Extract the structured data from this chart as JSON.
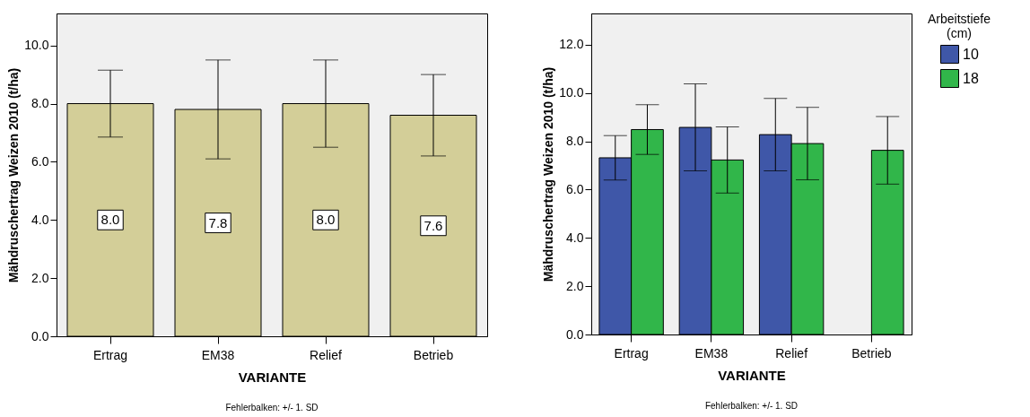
{
  "chart_data": [
    {
      "type": "bar",
      "categories": [
        "Ertrag",
        "EM38",
        "Relief",
        "Betrieb"
      ],
      "xlabel": "VARIANTE",
      "ylabel": "Mähdruschertrag Weizen 2010 (t/ha)",
      "values": [
        8.0,
        7.8,
        8.0,
        7.6
      ],
      "color": "#d3ce98",
      "errors": [
        1.15,
        1.7,
        1.5,
        1.4
      ],
      "value_labels": [
        "8.0",
        "7.8",
        "8.0",
        "7.6"
      ],
      "ylim": [
        0,
        11.1
      ],
      "yticks": [
        {
          "value": 0,
          "label": "0.0"
        },
        {
          "value": 2,
          "label": "2.0"
        },
        {
          "value": 4,
          "label": "4.0"
        },
        {
          "value": 6,
          "label": "6.0"
        },
        {
          "value": 8,
          "label": "8.0"
        },
        {
          "value": 10,
          "label": "10.0"
        }
      ],
      "annotations": [
        "Fehlerbalken: +/- 1. SD"
      ],
      "grid": false,
      "legend": false
    },
    {
      "type": "bar",
      "categories": [
        "Ertrag",
        "EM38",
        "Relief",
        "Betrieb"
      ],
      "xlabel": "VARIANTE",
      "ylabel": "Mähdruschertrag Weizen 2010 (t/ha)",
      "legend_title": "Arbeitstiefe (cm)",
      "series": [
        {
          "name": "10",
          "color": "#3f57a8",
          "values": [
            7.32,
            8.58,
            8.28,
            null
          ],
          "errors": [
            0.92,
            1.8,
            1.5,
            null
          ]
        },
        {
          "name": "18",
          "color": "#31b64a",
          "values": [
            8.49,
            7.23,
            7.91,
            7.63
          ],
          "errors": [
            1.03,
            1.37,
            1.5,
            1.4
          ]
        }
      ],
      "ylim": [
        0,
        13.3
      ],
      "yticks": [
        {
          "value": 0,
          "label": "0.0"
        },
        {
          "value": 2,
          "label": "2.0"
        },
        {
          "value": 4,
          "label": "4.0"
        },
        {
          "value": 6,
          "label": "6.0"
        },
        {
          "value": 8,
          "label": "8.0"
        },
        {
          "value": 10,
          "label": "10.0"
        },
        {
          "value": 12,
          "label": "12.0"
        }
      ],
      "annotations": [
        "Fehlerbalken: +/- 1. SD"
      ],
      "grid": false,
      "legend": "top right"
    }
  ]
}
